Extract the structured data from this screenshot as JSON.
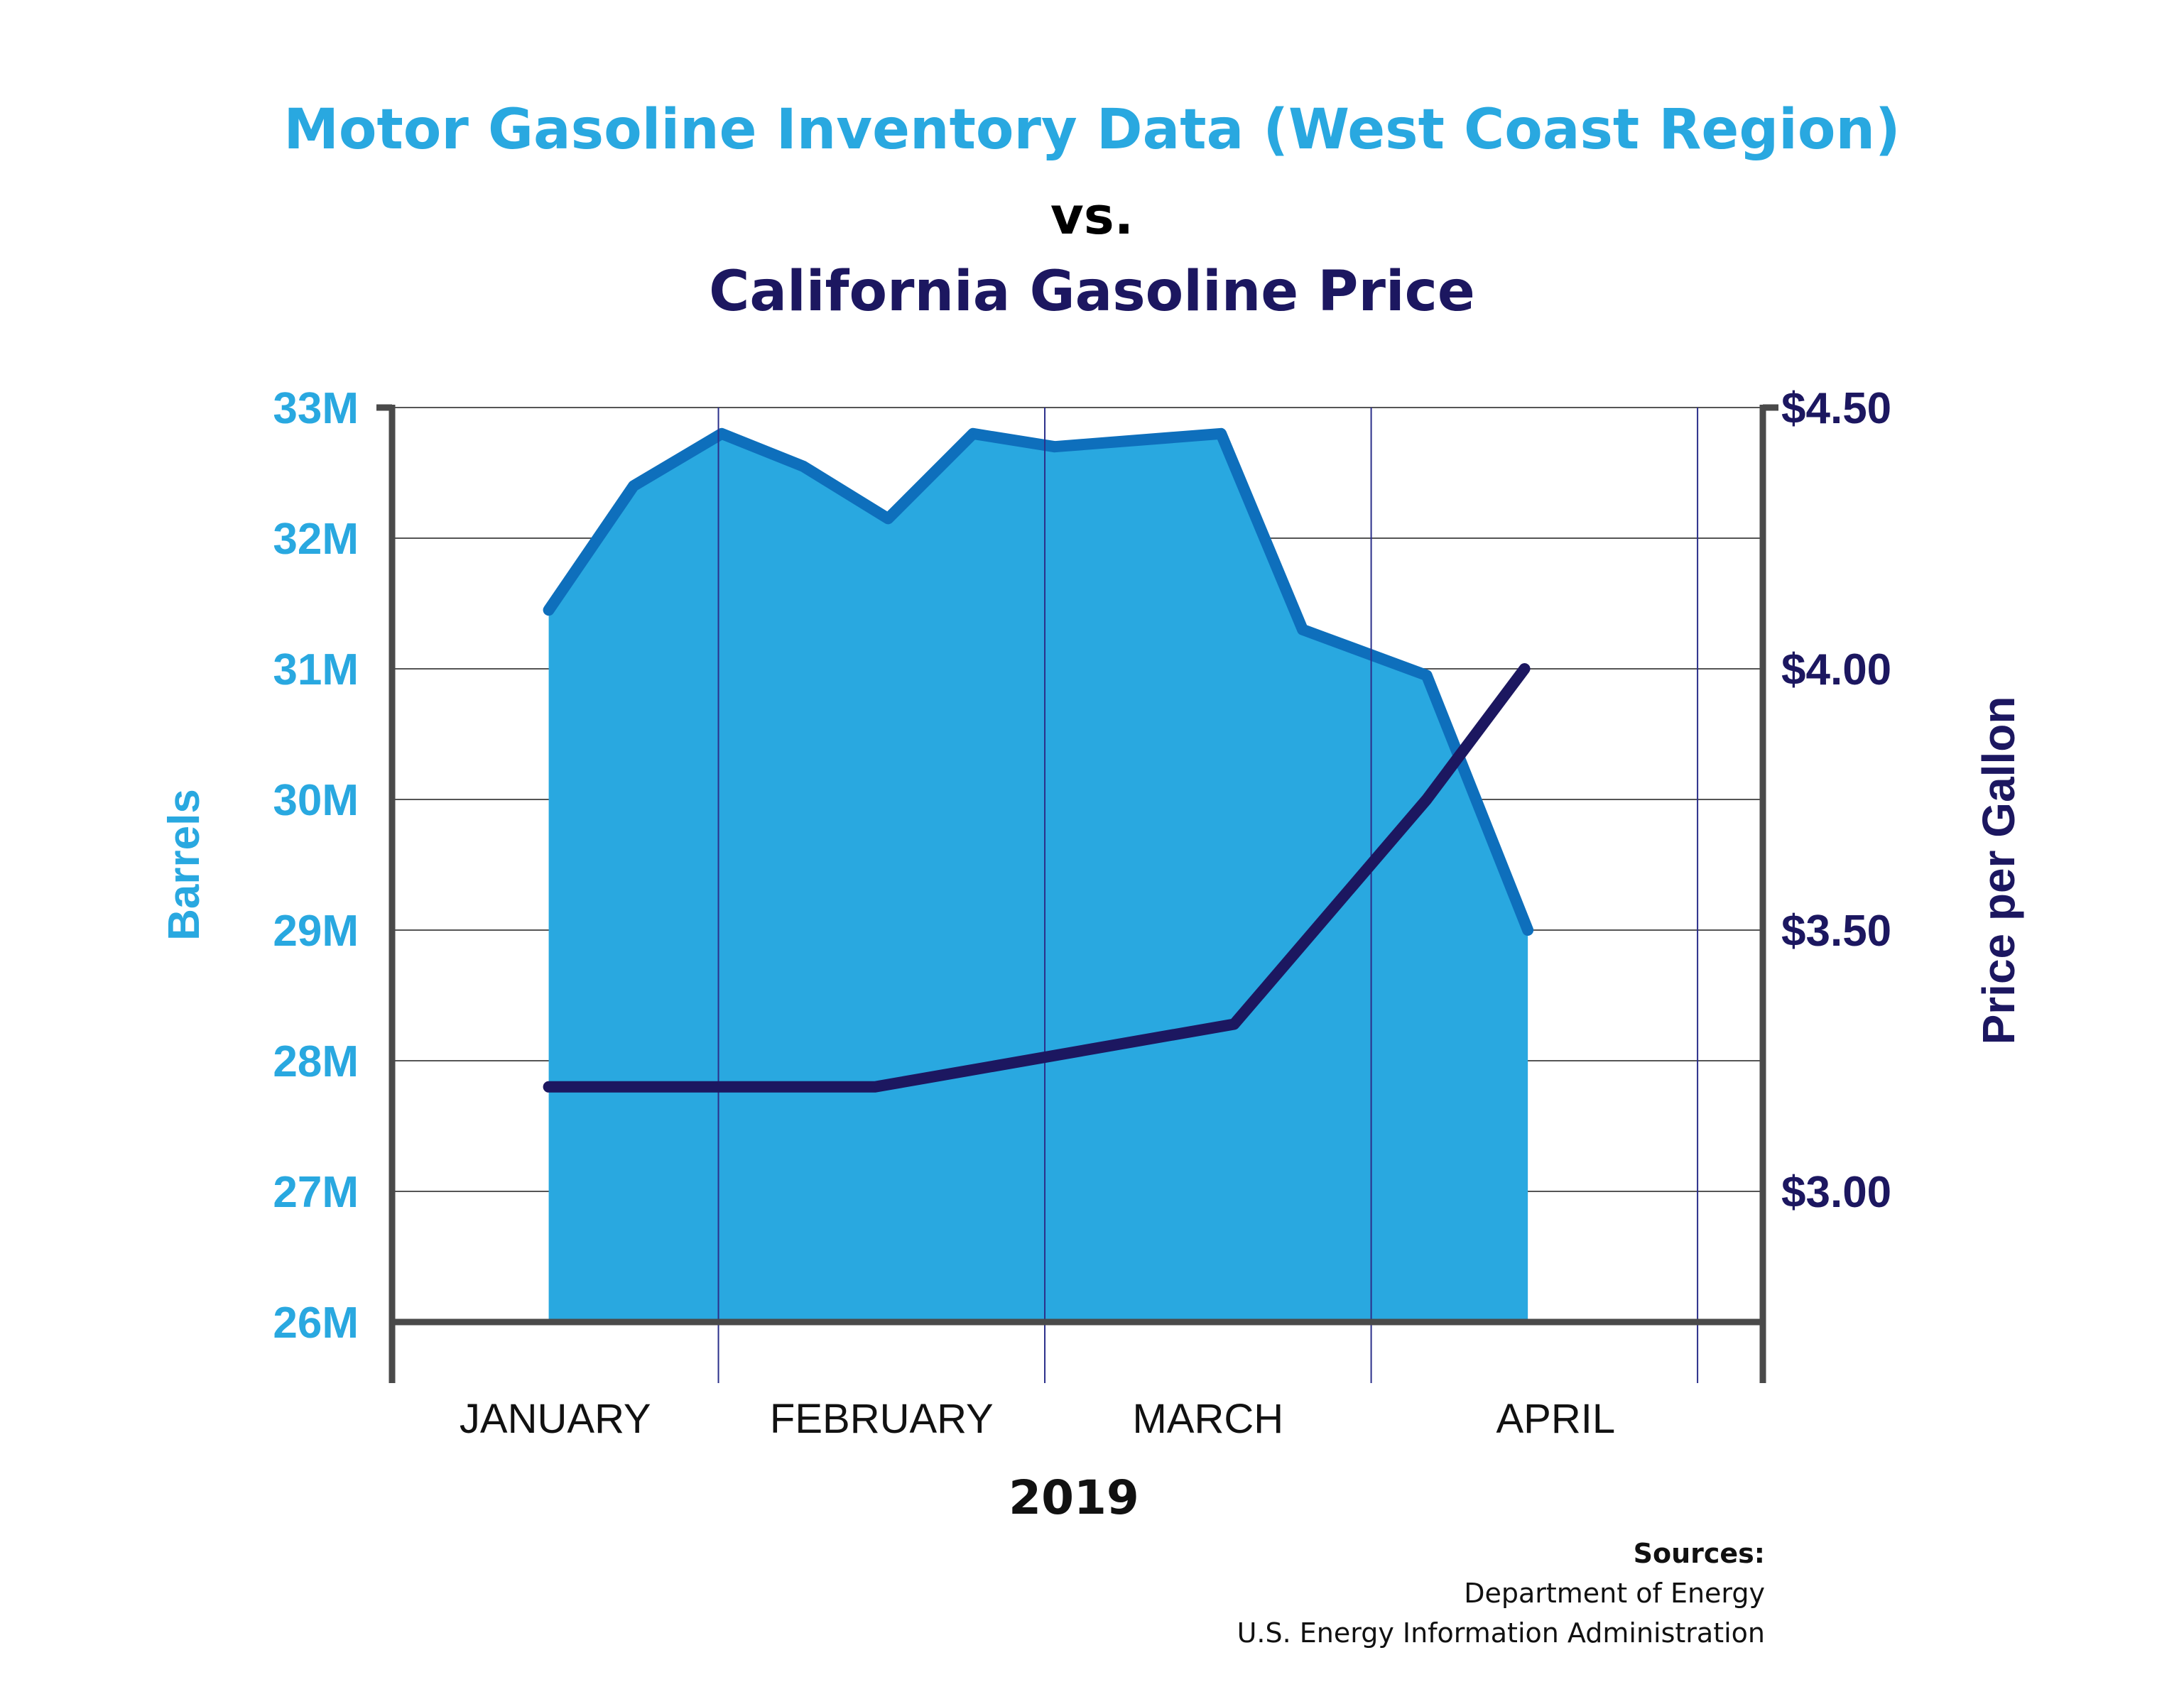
{
  "title_line1": "Motor Gasoline Inventory Data (West Coast Region)",
  "title_line2": "vs.",
  "title_line3": "California Gasoline Price",
  "colors": {
    "inventory_fill": "#29a8e0",
    "inventory_line": "#0e6fbc",
    "price_line": "#1c1760",
    "left_axis_text": "#29a8e0",
    "right_axis_text": "#1c1760",
    "axis": "#4a4a4a"
  },
  "sources": {
    "heading": "Sources:",
    "items": [
      "Department of Energy",
      "U.S. Energy Information Administration"
    ]
  },
  "chart_data": {
    "type": "area",
    "xlabel": "2019",
    "categories": [
      "JANUARY",
      "FEBRUARY",
      "MARCH",
      "APRIL"
    ],
    "x_range": [
      0.5,
      4.7
    ],
    "left_axis": {
      "label": "Barrels",
      "range": [
        26,
        33
      ],
      "ticks": [
        "26M",
        "27M",
        "28M",
        "29M",
        "30M",
        "31M",
        "32M",
        "33M"
      ],
      "tick_values": [
        26,
        27,
        28,
        29,
        30,
        31,
        32,
        33
      ]
    },
    "right_axis": {
      "label": "Price per Gallon",
      "range": [
        2.75,
        4.5
      ],
      "ticks": [
        "$3.00",
        "$3.50",
        "$4.00",
        "$4.50"
      ],
      "tick_values": [
        3.0,
        3.5,
        4.0,
        4.5
      ]
    },
    "grid": true,
    "series": [
      {
        "axis": "left",
        "kind": "area",
        "x": [
          0.98,
          1.24,
          1.51,
          1.76,
          2.02,
          2.28,
          2.53,
          3.04,
          3.29,
          3.67,
          3.98
        ],
        "values": [
          31.45,
          32.4,
          32.8,
          32.55,
          32.15,
          32.8,
          32.7,
          32.8,
          31.3,
          30.95,
          29.0
        ]
      },
      {
        "axis": "right",
        "kind": "line",
        "x": [
          0.98,
          1.98,
          3.08,
          3.67,
          3.97
        ],
        "values": [
          3.2,
          3.2,
          3.32,
          3.75,
          4.0
        ]
      }
    ]
  }
}
